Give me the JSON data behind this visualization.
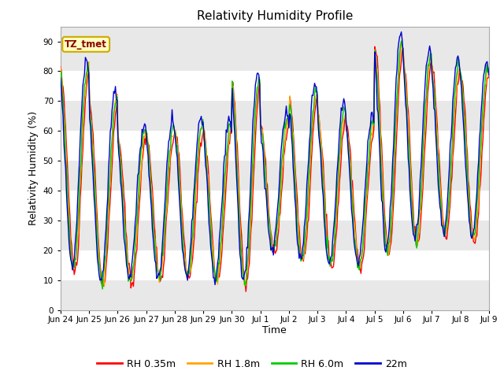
{
  "title": "Relativity Humidity Profile",
  "ylabel": "Relativity Humidity (%)",
  "xlabel": "Time",
  "ylim": [
    0,
    95
  ],
  "yticks": [
    0,
    10,
    20,
    30,
    40,
    50,
    60,
    70,
    80,
    90
  ],
  "annotation_text": "TZ_tmet",
  "annotation_box_color": "#FFFFC0",
  "annotation_text_color": "#8B0000",
  "annotation_border_color": "#CCAA00",
  "fig_face_color": "#FFFFFF",
  "axes_face_color": "#FFFFFF",
  "band_color_light": "#E8E8E8",
  "band_color_white": "#FFFFFF",
  "series_colors": [
    "#FF0000",
    "#FFA500",
    "#00CC00",
    "#0000CC"
  ],
  "series_labels": [
    "RH 0.35m",
    "RH 1.8m",
    "RH 6.0m",
    "22m"
  ],
  "x_tick_labels": [
    "Jun 24",
    "Jun 25",
    "Jun 26",
    "Jun 27",
    "Jun 28",
    "Jun 29",
    "Jun 30",
    "Jul 1",
    "Jul 2",
    "Jul 3",
    "Jul 4",
    "Jul 5",
    "Jul 6",
    "Jul 7",
    "Jul 8",
    "Jul 9"
  ],
  "num_points": 500,
  "figsize": [
    6.4,
    4.8
  ],
  "dpi": 100
}
